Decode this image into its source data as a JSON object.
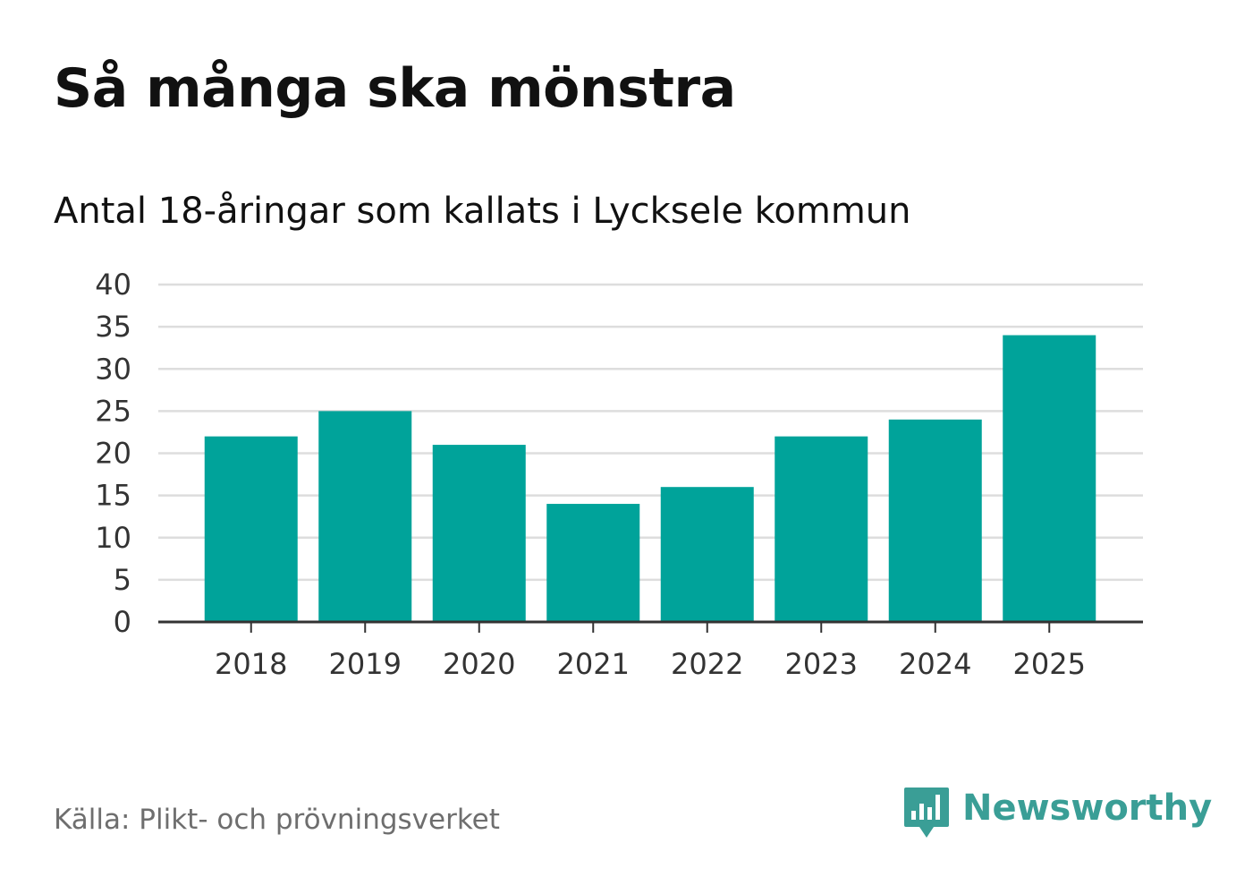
{
  "header": {
    "title": "Så många ska mönstra",
    "subtitle": "Antal 18-åringar som kallats i Lycksele kommun"
  },
  "footer": {
    "source": "Källa: Plikt- och prövningsverket",
    "brand": "Newsworthy",
    "brand_icon": "newsworthy-logo-icon"
  },
  "colors": {
    "bar": "#00a39a",
    "grid": "#dddddd",
    "axis": "#333333",
    "brand": "#3a9e96"
  },
  "chart_data": {
    "type": "bar",
    "title": "Så många ska mönstra",
    "subtitle": "Antal 18-åringar som kallats i Lycksele kommun",
    "xlabel": "",
    "ylabel": "",
    "categories": [
      "2018",
      "2019",
      "2020",
      "2021",
      "2022",
      "2023",
      "2024",
      "2025"
    ],
    "values": [
      22,
      25,
      21,
      14,
      16,
      22,
      24,
      34
    ],
    "ylim": [
      0,
      40
    ],
    "yticks": [
      0,
      5,
      10,
      15,
      20,
      25,
      30,
      35,
      40
    ],
    "grid": true,
    "legend": "none"
  }
}
